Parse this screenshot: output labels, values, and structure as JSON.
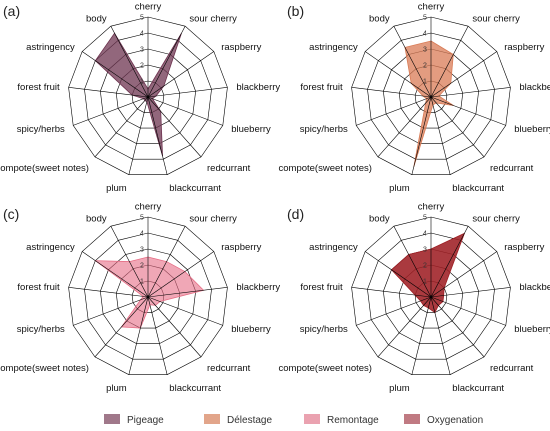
{
  "chart_data": [
    {
      "type": "radar",
      "panel_label": "(a)",
      "axes": [
        "cherry",
        "sour cherry",
        "raspberry",
        "blackberry",
        "blueberry",
        "redcurrant",
        "blackcurrant",
        "plum",
        "compote(sweet notes)",
        "spicy/herbs",
        "forest fruit",
        "astringency",
        "body"
      ],
      "rmax": 5,
      "ticks": [
        "0",
        "1",
        "2",
        "3",
        "4",
        "5"
      ],
      "grid": true,
      "series": [
        {
          "name": "Pigeage",
          "values": [
            0.5,
            4.5,
            1.2,
            0.5,
            0.3,
            1.2,
            3.8,
            0.3,
            0.3,
            0.3,
            1.0,
            4.0,
            4.5
          ]
        }
      ]
    },
    {
      "type": "radar",
      "panel_label": "(b)",
      "axes": [
        "cherry",
        "sour cherry",
        "raspberry",
        "blackberry",
        "blueberry",
        "redcurrant",
        "blackcurrant",
        "plum",
        "compote(sweet notes)",
        "spicy/herbs",
        "forest fruit",
        "astringency",
        "body"
      ],
      "rmax": 5,
      "ticks": [
        "0",
        "1",
        "2",
        "3",
        "4",
        "5"
      ],
      "grid": true,
      "series": [
        {
          "name": "Délestage",
          "values": [
            3.5,
            3.0,
            1.5,
            0.5,
            1.5,
            0.5,
            0.5,
            4.5,
            0.5,
            0.3,
            0.5,
            1.5,
            3.5
          ]
        }
      ]
    },
    {
      "type": "radar",
      "panel_label": "(c)",
      "axes": [
        "cherry",
        "sour cherry",
        "raspberry",
        "blackberry",
        "blueberry",
        "redcurrant",
        "blackcurrant",
        "plum",
        "compote(sweet notes)",
        "spicy/herbs",
        "forest fruit",
        "astringency",
        "body"
      ],
      "rmax": 5,
      "ticks": [
        "0",
        "1",
        "2",
        "3",
        "4",
        "5"
      ],
      "grid": true,
      "series": [
        {
          "name": "Remontage",
          "values": [
            2.5,
            2.5,
            2.8,
            3.5,
            0.8,
            0.7,
            0.5,
            2.0,
            2.5,
            0.5,
            0.3,
            4.0,
            2.5
          ]
        }
      ]
    },
    {
      "type": "radar",
      "panel_label": "(d)",
      "axes": [
        "cherry",
        "sour cherry",
        "raspberry",
        "blackberry",
        "blueberry",
        "redcurrant",
        "blackcurrant",
        "plum",
        "compote(sweet notes)",
        "spicy/herbs",
        "forest fruit",
        "astringency",
        "body"
      ],
      "rmax": 5,
      "ticks": [
        "0",
        "1",
        "2",
        "3",
        "4",
        "5"
      ],
      "grid": true,
      "series": [
        {
          "name": "Oxygenation",
          "values": [
            3.0,
            4.5,
            1.0,
            0.8,
            0.8,
            0.7,
            1.0,
            0.7,
            0.7,
            0.7,
            1.0,
            3.0,
            3.0
          ]
        }
      ]
    }
  ],
  "legend": {
    "position": "bottom",
    "items": [
      {
        "label": "Pigeage",
        "color": "#a0788a"
      },
      {
        "label": "Délestage",
        "color": "#e2a58a"
      },
      {
        "label": "Remontage",
        "color": "#eaa2b0"
      },
      {
        "label": "Oxygenation",
        "color": "#c07a82"
      }
    ]
  },
  "colors": {
    "pigeage_fill": "#6e3450",
    "delestage_fill": "#d97b55",
    "remontage_fill": "#e66d85",
    "oxygenation_fill": "#9e1f24"
  }
}
